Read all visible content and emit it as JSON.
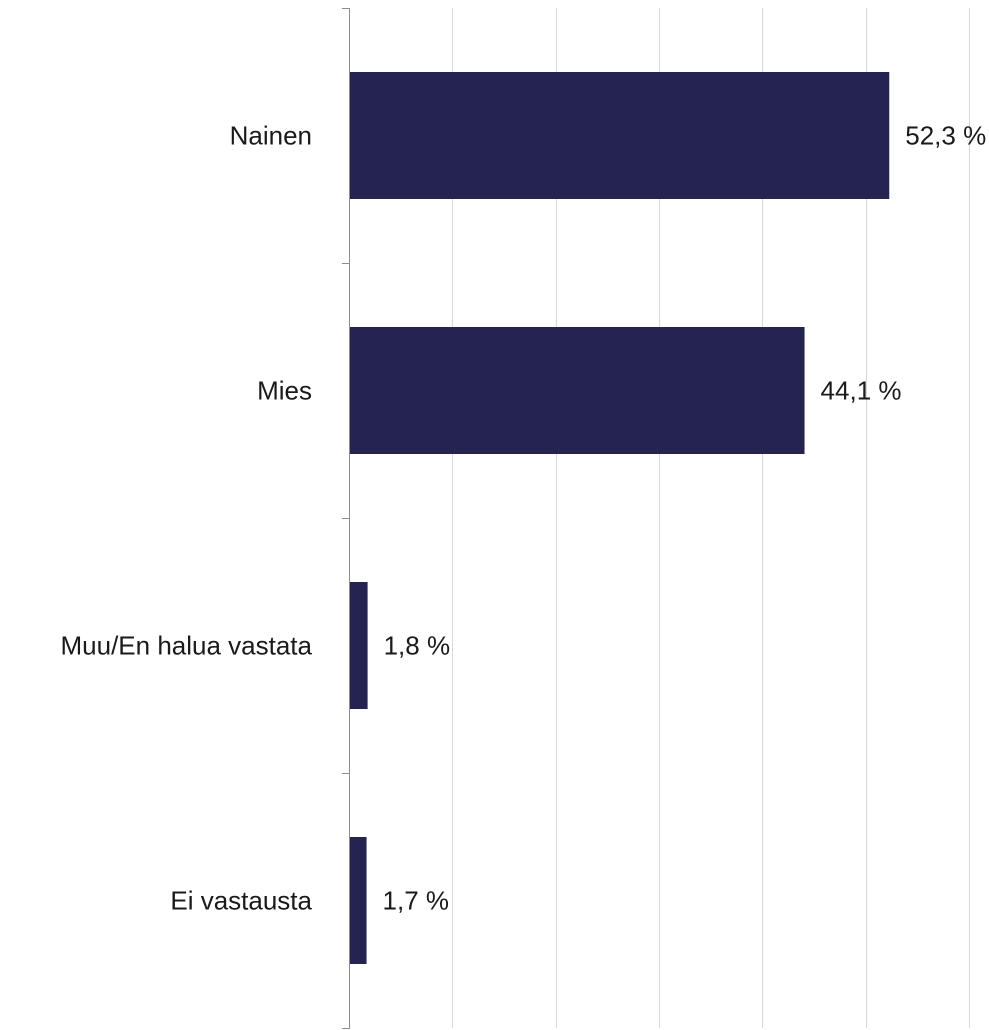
{
  "chart_data": {
    "type": "bar",
    "orientation": "horizontal",
    "categories": [
      "Nainen",
      "Mies",
      "Muu/En halua vastata",
      "Ei vastausta"
    ],
    "values": [
      52.3,
      44.1,
      1.8,
      1.7
    ],
    "value_labels": [
      "52,3 %",
      "44,1 %",
      "1,8 %",
      "1,7 %"
    ],
    "unit": "%",
    "xlim": [
      0,
      60
    ],
    "gridlines": [
      10,
      20,
      30,
      40,
      50,
      60
    ],
    "grid": true,
    "bar_color": "#252450",
    "grid_color": "#d9d9d9",
    "axis_color": "#8c8c8c",
    "title": "",
    "xlabel": "",
    "ylabel": ""
  }
}
